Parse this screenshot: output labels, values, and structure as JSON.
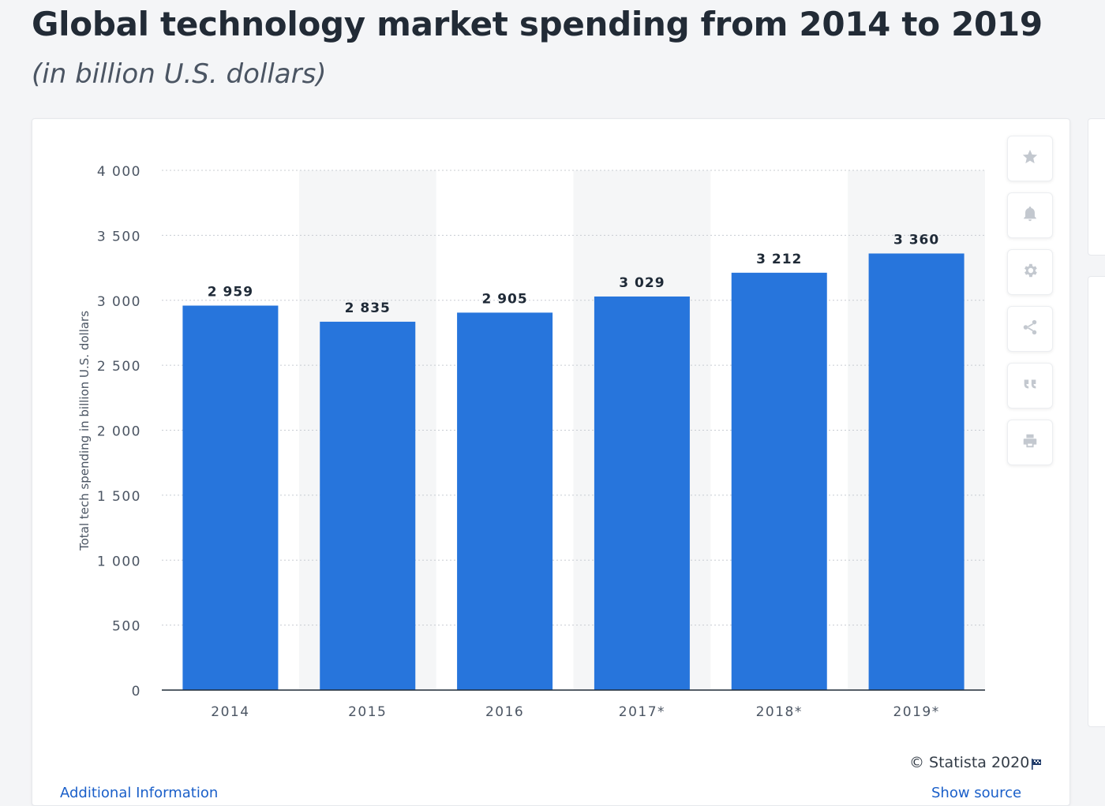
{
  "header": {
    "title": "Global technology market spending from 2014 to 2019",
    "subtitle": "(in billion U.S. dollars)"
  },
  "toolbar": {
    "buttons": [
      {
        "icon": "star-icon"
      },
      {
        "icon": "bell-icon"
      },
      {
        "icon": "gear-icon"
      },
      {
        "icon": "share-icon"
      },
      {
        "icon": "quote-icon"
      },
      {
        "icon": "print-icon"
      }
    ]
  },
  "footer": {
    "credit": "© Statista 2020",
    "additional_info": "Additional Information",
    "show_source": "Show source"
  },
  "colors": {
    "bar": "#2775dc",
    "band": "#f5f6f7",
    "grid": "#c8ccd2",
    "axis": "#1f2a37"
  },
  "chart_data": {
    "type": "bar",
    "title": "Global technology market spending from 2014 to 2019",
    "subtitle": "(in billion U.S. dollars)",
    "xlabel": "",
    "ylabel": "Total tech spending in billion U.S. dollars",
    "categories": [
      "2014",
      "2015",
      "2016",
      "2017*",
      "2018*",
      "2019*"
    ],
    "values": [
      2959,
      2835,
      2905,
      3029,
      3212,
      3360
    ],
    "value_labels": [
      "2 959",
      "2 835",
      "2 905",
      "3 029",
      "3 212",
      "3 360"
    ],
    "yticks": [
      0,
      500,
      1000,
      1500,
      2000,
      2500,
      3000,
      3500,
      4000
    ],
    "ytick_labels": [
      "0",
      "500",
      "1 000",
      "1 500",
      "2 000",
      "2 500",
      "3 000",
      "3 500",
      "4 000"
    ],
    "ylim": [
      0,
      4000
    ],
    "grid": true,
    "legend": "none"
  }
}
